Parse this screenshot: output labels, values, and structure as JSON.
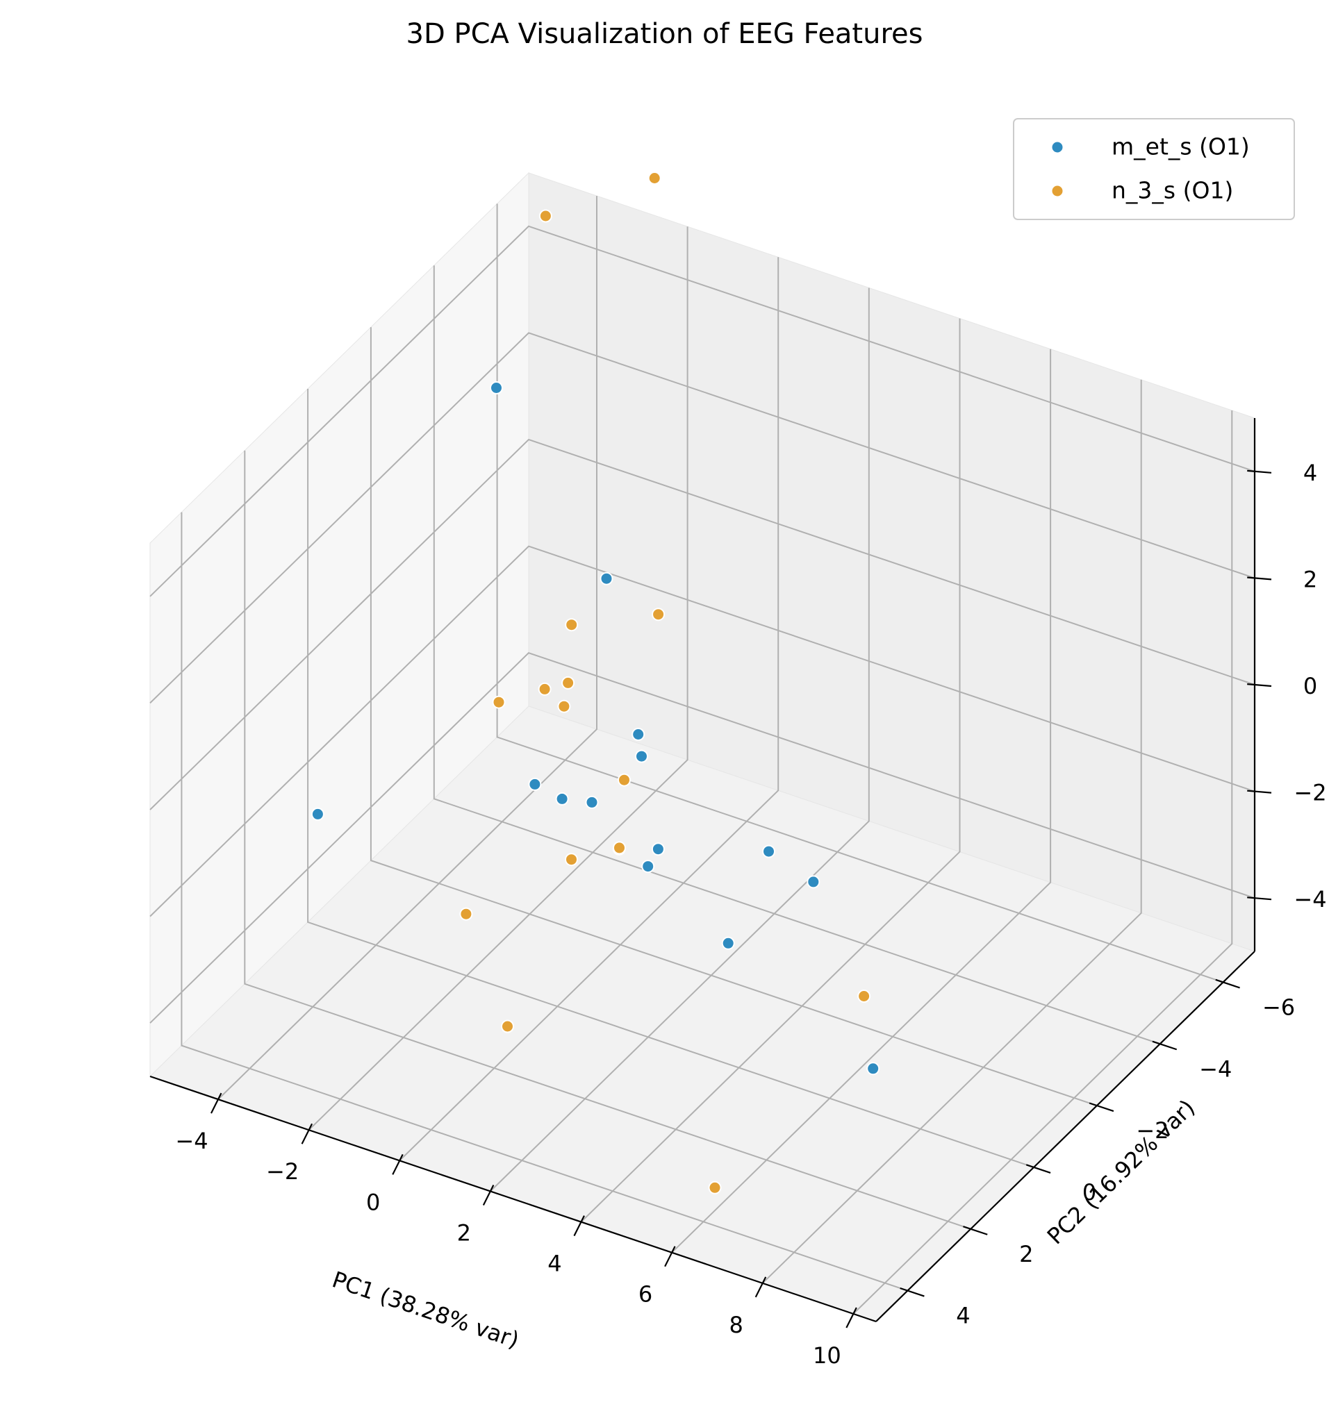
{
  "chart_data": {
    "type": "scatter",
    "projection": "3d",
    "title": "3D PCA Visualization of EEG Features",
    "xlabel": "PC1 (38.28% var)",
    "ylabel": "PC2 (16.92% var)",
    "zlabel": "",
    "xlim": [
      -5.5,
      10.5
    ],
    "ylim": [
      -7,
      5
    ],
    "zlim": [
      -5,
      5
    ],
    "xticks": [
      -4,
      -2,
      0,
      2,
      4,
      6,
      8,
      10
    ],
    "yticks": [
      -6,
      -4,
      -2,
      0,
      2,
      4
    ],
    "zticks": [
      -4,
      -2,
      0,
      2,
      4
    ],
    "xtick_labels": [
      "−4",
      "−2",
      "0",
      "2",
      "4",
      "6",
      "8",
      "10"
    ],
    "ytick_labels": [
      "−6",
      "−4",
      "−2",
      "0",
      "2",
      "4"
    ],
    "ztick_labels": [
      "−4",
      "−2",
      "0",
      "2",
      "4"
    ],
    "grid": true,
    "legend_position": "top-right",
    "series": [
      {
        "name": "m_et_s (O1)",
        "color": "#2e8bc0",
        "points": [
          {
            "x": -3.5,
            "y": -3.1,
            "z": 3.8
          },
          {
            "x": 1.5,
            "y": 0.6,
            "z": 3.8
          },
          {
            "x": -2.5,
            "y": 4.0,
            "z": 0.2
          },
          {
            "x": 0.2,
            "y": 1.0,
            "z": -0.2
          },
          {
            "x": 0.8,
            "y": 1.0,
            "z": -0.3
          },
          {
            "x": 0.9,
            "y": 0.2,
            "z": -0.8
          },
          {
            "x": 1.3,
            "y": -0.8,
            "z": -0.4
          },
          {
            "x": 1.5,
            "y": 0.2,
            "z": -1.5
          },
          {
            "x": 2.5,
            "y": 0.4,
            "z": -1.1
          },
          {
            "x": 4.6,
            "y": 1.2,
            "z": -1.8
          },
          {
            "x": 4.5,
            "y": 3.6,
            "z": 1.0
          },
          {
            "x": 7.3,
            "y": 3.8,
            "z": 2.2
          },
          {
            "x": 8.0,
            "y": 1.5,
            "z": -3.0
          },
          {
            "x": -1.0,
            "y": -4.0,
            "z": -2.5
          },
          {
            "x": 3.0,
            "y": -3.8,
            "z": -4.0
          }
        ]
      },
      {
        "name": "n_3_s (O1)",
        "color": "#e3a033",
        "points": [
          {
            "x": -4.5,
            "y": -6.1,
            "z": 5.0
          },
          {
            "x": -2.1,
            "y": -6.1,
            "z": 6.4
          },
          {
            "x": -1.5,
            "y": -0.3,
            "z": 0.1
          },
          {
            "x": -0.8,
            "y": -1.6,
            "z": 1.0
          },
          {
            "x": -0.6,
            "y": -1.2,
            "z": 0.2
          },
          {
            "x": 0.0,
            "y": -3.2,
            "z": 0.5
          },
          {
            "x": 1.7,
            "y": 2.0,
            "z": -0.6
          },
          {
            "x": 2.2,
            "y": 1.2,
            "z": -0.7
          },
          {
            "x": -0.9,
            "y": 1.6,
            "z": -2.6
          },
          {
            "x": 0.5,
            "y": 2.3,
            "z": -3.9
          },
          {
            "x": 7.8,
            "y": 1.5,
            "z": -1.7
          },
          {
            "x": 6.6,
            "y": 4.5,
            "z": -3.9
          },
          {
            "x": -3.2,
            "y": -4.2,
            "z": -2.4
          },
          {
            "x": -3.4,
            "y": -5.1,
            "z": -3.3
          },
          {
            "x": -2.7,
            "y": -6.0,
            "z": -5.0
          }
        ]
      }
    ]
  }
}
